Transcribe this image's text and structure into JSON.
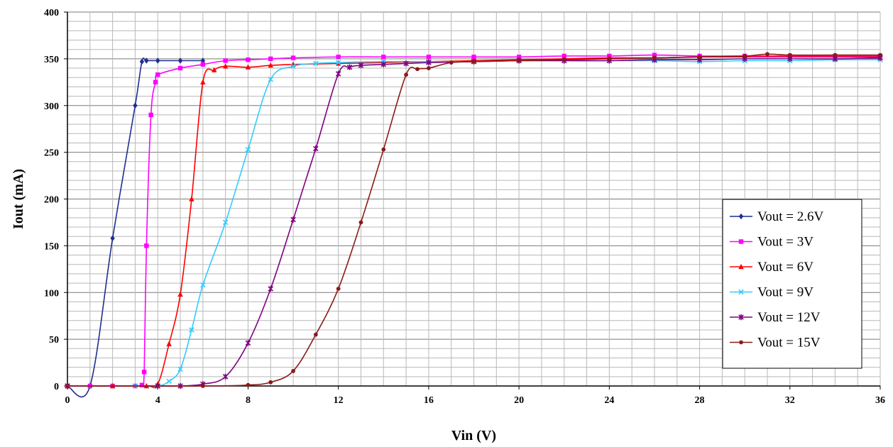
{
  "chart_data": {
    "type": "line",
    "title": "",
    "xlabel": "Vin (V)",
    "ylabel": "Iout (mA)",
    "xlim": [
      0,
      36
    ],
    "ylim": [
      0,
      400
    ],
    "x_ticks": [
      0,
      4,
      8,
      12,
      16,
      20,
      24,
      28,
      32,
      36
    ],
    "y_ticks": [
      0,
      50,
      100,
      150,
      200,
      250,
      300,
      350,
      400
    ],
    "x_minor_step": 1,
    "y_minor_step": 10,
    "grid": true,
    "legend_position": "right",
    "series": [
      {
        "name": "Vout = 2.6V",
        "color": "#1f2f8f",
        "marker": "diamond",
        "points": [
          [
            0,
            0
          ],
          [
            1,
            0
          ],
          [
            2,
            158
          ],
          [
            3,
            300
          ],
          [
            3.3,
            347
          ],
          [
            3.5,
            348
          ],
          [
            4,
            348
          ],
          [
            5,
            348
          ],
          [
            6,
            348
          ]
        ]
      },
      {
        "name": "Vout = 3V",
        "color": "#ff00ff",
        "marker": "square",
        "points": [
          [
            0,
            0
          ],
          [
            1,
            0
          ],
          [
            2,
            0
          ],
          [
            3,
            0
          ],
          [
            3.3,
            1
          ],
          [
            3.4,
            15
          ],
          [
            3.5,
            150
          ],
          [
            3.7,
            290
          ],
          [
            3.9,
            325
          ],
          [
            4,
            333
          ],
          [
            5,
            340
          ],
          [
            6,
            344
          ],
          [
            7,
            348
          ],
          [
            8,
            349
          ],
          [
            9,
            350
          ],
          [
            10,
            351
          ],
          [
            12,
            352
          ],
          [
            14,
            352
          ],
          [
            16,
            352
          ],
          [
            18,
            352
          ],
          [
            20,
            352
          ],
          [
            22,
            353
          ],
          [
            24,
            353
          ],
          [
            26,
            354
          ],
          [
            28,
            353
          ],
          [
            30,
            353
          ],
          [
            32,
            353
          ],
          [
            34,
            353
          ],
          [
            36,
            353
          ]
        ]
      },
      {
        "name": "Vout = 6V",
        "color": "#ff0000",
        "marker": "triangle",
        "points": [
          [
            0,
            0
          ],
          [
            2,
            0
          ],
          [
            3.5,
            0
          ],
          [
            4,
            2
          ],
          [
            4.5,
            45
          ],
          [
            5,
            98
          ],
          [
            5.5,
            200
          ],
          [
            6,
            325
          ],
          [
            6.5,
            338
          ],
          [
            7,
            342
          ],
          [
            8,
            341
          ],
          [
            9,
            343
          ],
          [
            10,
            344
          ],
          [
            12,
            345
          ],
          [
            14,
            346
          ],
          [
            16,
            347
          ],
          [
            18,
            348
          ],
          [
            20,
            349
          ],
          [
            22,
            350
          ],
          [
            24,
            351
          ],
          [
            26,
            351
          ],
          [
            28,
            352
          ],
          [
            30,
            352
          ],
          [
            32,
            352
          ],
          [
            34,
            352
          ],
          [
            36,
            352
          ]
        ]
      },
      {
        "name": "Vout = 9V",
        "color": "#33ccff",
        "marker": "cross",
        "points": [
          [
            0,
            0
          ],
          [
            3,
            0
          ],
          [
            4,
            0
          ],
          [
            4.5,
            5
          ],
          [
            5,
            18
          ],
          [
            5.5,
            60
          ],
          [
            6,
            108
          ],
          [
            7,
            175
          ],
          [
            8,
            253
          ],
          [
            9,
            328
          ],
          [
            10,
            342
          ],
          [
            11,
            345
          ],
          [
            12,
            346
          ],
          [
            14,
            347
          ],
          [
            16,
            347
          ],
          [
            18,
            347
          ],
          [
            20,
            348
          ],
          [
            22,
            348
          ],
          [
            24,
            348
          ],
          [
            26,
            348
          ],
          [
            28,
            347
          ],
          [
            30,
            348
          ],
          [
            32,
            348
          ],
          [
            34,
            349
          ],
          [
            36,
            349
          ]
        ]
      },
      {
        "name": "Vout = 12V",
        "color": "#800080",
        "marker": "star",
        "points": [
          [
            0,
            0
          ],
          [
            4,
            0
          ],
          [
            5,
            0
          ],
          [
            6,
            2
          ],
          [
            7,
            10
          ],
          [
            8,
            46
          ],
          [
            9,
            104
          ],
          [
            10,
            178
          ],
          [
            11,
            254
          ],
          [
            12,
            334
          ],
          [
            12.5,
            341
          ],
          [
            13,
            343
          ],
          [
            14,
            344
          ],
          [
            15,
            345
          ],
          [
            16,
            346
          ],
          [
            18,
            347
          ],
          [
            20,
            348
          ],
          [
            22,
            348
          ],
          [
            24,
            348
          ],
          [
            26,
            349
          ],
          [
            28,
            349
          ],
          [
            30,
            350
          ],
          [
            32,
            350
          ],
          [
            34,
            350
          ],
          [
            36,
            351
          ]
        ]
      },
      {
        "name": "Vout = 15V",
        "color": "#8b1a1a",
        "marker": "circle",
        "points": [
          [
            0,
            0
          ],
          [
            6,
            0
          ],
          [
            8,
            1
          ],
          [
            9,
            4
          ],
          [
            10,
            16
          ],
          [
            11,
            55
          ],
          [
            12,
            104
          ],
          [
            13,
            175
          ],
          [
            14,
            253
          ],
          [
            15,
            333
          ],
          [
            15.5,
            339
          ],
          [
            16,
            340
          ],
          [
            17,
            346
          ],
          [
            18,
            347
          ],
          [
            20,
            348
          ],
          [
            22,
            349
          ],
          [
            24,
            350
          ],
          [
            26,
            351
          ],
          [
            28,
            352
          ],
          [
            30,
            353
          ],
          [
            31,
            355
          ],
          [
            32,
            354
          ],
          [
            34,
            354
          ],
          [
            36,
            354
          ]
        ]
      }
    ]
  }
}
